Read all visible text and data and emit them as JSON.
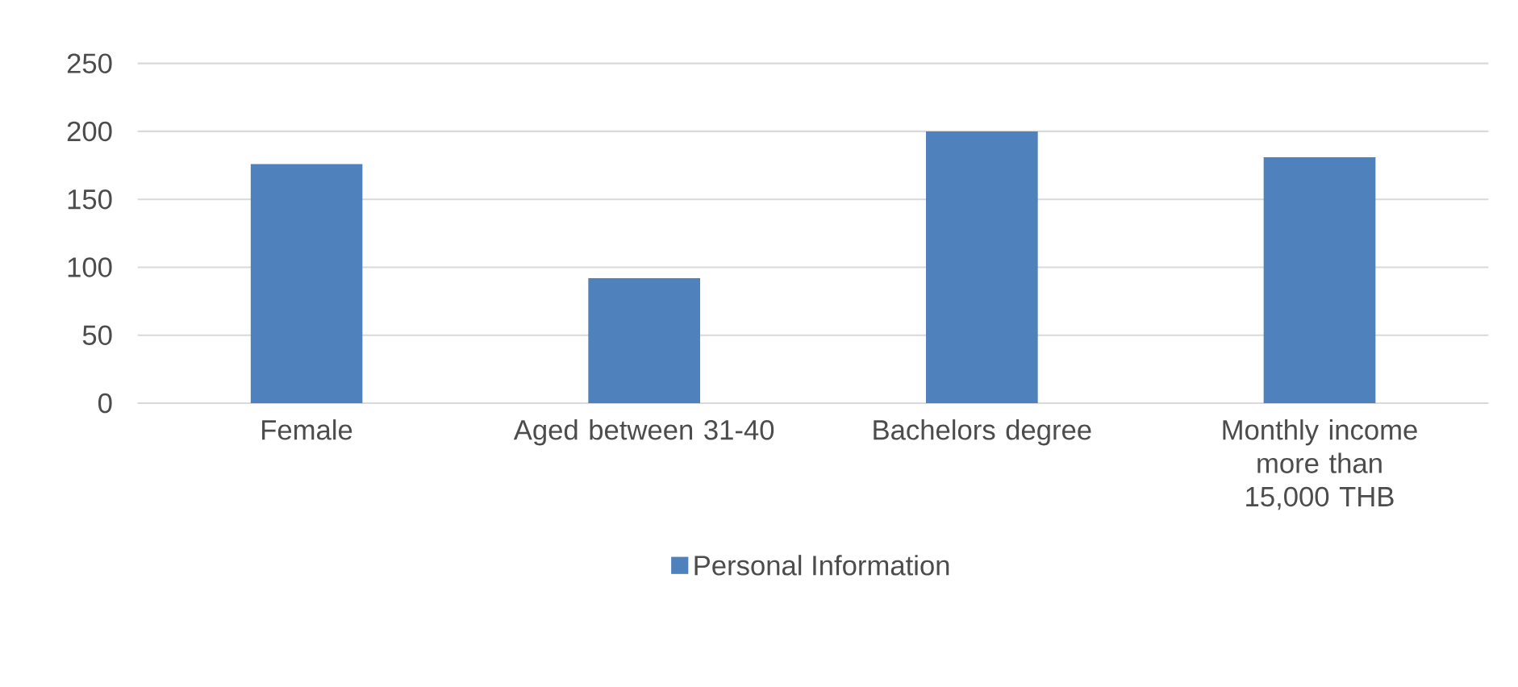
{
  "chart_data": {
    "type": "bar",
    "categories": [
      "Female",
      "Aged between 31-40",
      "Bachelors degree",
      "Monthly income more than 15,000 THB"
    ],
    "series": [
      {
        "name": "Personal Information",
        "color": "#4f81bd",
        "values": [
          176,
          92,
          200,
          181
        ]
      }
    ],
    "ylim": [
      0,
      250
    ],
    "yticks": [
      0,
      50,
      100,
      150,
      200,
      250
    ],
    "grid": "y",
    "legend": "bottom"
  }
}
